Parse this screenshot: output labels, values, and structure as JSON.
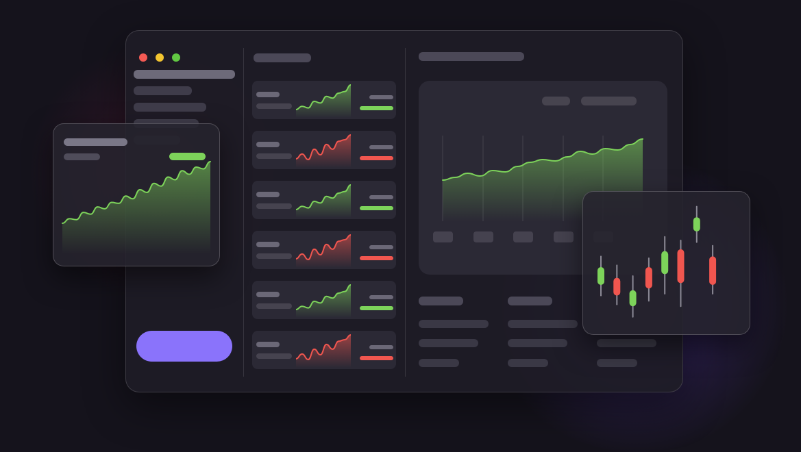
{
  "theme": {
    "background": "#15131c",
    "accent": "#8a73fb",
    "positive": "#7dd35a",
    "negative": "#f0564f",
    "window_close": "#f45a54",
    "window_minimize": "#f3c530",
    "window_maximize": "#62c843"
  },
  "sidebar": {
    "nav_item_count": 5,
    "cta_button_label": ""
  },
  "market_list": {
    "items": [
      {
        "trend": "up"
      },
      {
        "trend": "down"
      },
      {
        "trend": "up"
      },
      {
        "trend": "down"
      },
      {
        "trend": "up"
      },
      {
        "trend": "down"
      }
    ]
  },
  "main_chart": {
    "type": "area",
    "color": "#7dd35a",
    "values": [
      32,
      34,
      37,
      35,
      39,
      38,
      42,
      45,
      47,
      46,
      49,
      53,
      51,
      55,
      54,
      58,
      62
    ],
    "x_tick_count": 5
  },
  "floating_area_chart": {
    "type": "area",
    "color": "#7dd35a",
    "values": [
      10,
      15,
      14,
      22,
      20,
      28,
      26,
      33,
      32,
      40,
      37,
      47,
      44,
      54,
      51,
      61,
      58,
      68,
      64,
      72,
      70,
      78
    ]
  },
  "candlestick_chart": {
    "type": "candlestick",
    "candles": [
      {
        "open": 40,
        "close": 60,
        "high": 72,
        "low": 28,
        "up": true
      },
      {
        "open": 48,
        "close": 28,
        "high": 62,
        "low": 18,
        "up": false
      },
      {
        "open": 16,
        "close": 34,
        "high": 50,
        "low": 4,
        "up": true
      },
      {
        "open": 60,
        "close": 36,
        "high": 70,
        "low": 22,
        "up": false
      },
      {
        "open": 52,
        "close": 78,
        "high": 94,
        "low": 30,
        "up": true
      },
      {
        "open": 80,
        "close": 42,
        "high": 90,
        "low": 16,
        "up": false
      },
      {
        "open": 100,
        "close": 116,
        "high": 128,
        "low": 88,
        "up": true
      },
      {
        "open": 72,
        "close": 40,
        "high": 84,
        "low": 30,
        "up": false
      }
    ]
  },
  "summary_table": {
    "rows": 3,
    "columns": 3
  }
}
